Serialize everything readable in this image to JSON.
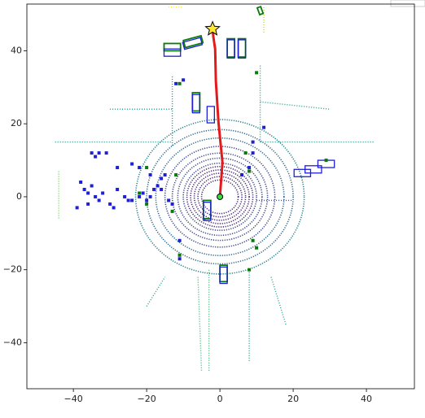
{
  "chart_data": {
    "type": "bev",
    "xlim": [
      -52.7,
      53.1
    ],
    "ylim": [
      -52.6,
      52.8
    ],
    "xticks": [
      {
        "value": -40,
        "label": "−40"
      },
      {
        "value": -20,
        "label": "−20"
      },
      0,
      20,
      40
    ],
    "yticks": [
      {
        "value": -40,
        "label": "−40"
      },
      {
        "value": -20,
        "label": "−20"
      },
      0,
      20,
      40
    ],
    "colormap": [
      "#440154",
      "#482878",
      "#3e4989",
      "#31688e",
      "#26828e",
      "#1f9e89",
      "#35b779",
      "#6ece58",
      "#b5de2b",
      "#fde725"
    ],
    "color_max": 55,
    "lidar_rings": [
      5,
      6,
      7,
      8,
      9,
      10,
      11.5,
      13,
      15,
      17.5,
      20,
      23
    ],
    "lidar_lines": [
      [
        -13,
        14,
        -13,
        33
      ],
      [
        11,
        15,
        11,
        36
      ],
      [
        -45,
        15,
        -13,
        15
      ],
      [
        11,
        15,
        42,
        15
      ],
      [
        -44,
        7,
        -44,
        -6
      ],
      [
        -3,
        -20,
        -3,
        -48
      ],
      [
        8,
        -20,
        8,
        -45
      ],
      [
        -6,
        -22,
        -5,
        -48
      ],
      [
        12,
        45,
        12,
        52
      ],
      [
        -14,
        52,
        -10,
        52
      ],
      [
        10,
        -1,
        20,
        -1
      ],
      [
        -30,
        24,
        -13,
        24
      ],
      [
        11,
        26,
        30,
        24
      ],
      [
        -20,
        -30,
        -15,
        -22
      ],
      [
        14,
        -22,
        18,
        -35
      ]
    ],
    "pred_boxes": [
      [
        -13,
        39.5,
        4.5,
        2,
        0
      ],
      [
        -7.5,
        42,
        5,
        2,
        15
      ],
      [
        3,
        40.5,
        2,
        5,
        0
      ],
      [
        6,
        40.5,
        2,
        5,
        0
      ],
      [
        -6.5,
        25.5,
        2,
        5,
        0
      ],
      [
        -2.5,
        22.5,
        2,
        4.5,
        0
      ],
      [
        -3.5,
        -4,
        2,
        5,
        0
      ],
      [
        1,
        -21.5,
        2,
        4.5,
        0
      ],
      [
        22.5,
        6.5,
        4.5,
        2,
        0
      ],
      [
        25.5,
        7.5,
        4.5,
        2,
        0
      ],
      [
        29,
        9,
        4.5,
        2,
        0
      ]
    ],
    "gt_boxes": [
      [
        -13,
        41,
        4.5,
        2,
        0
      ],
      [
        -7.3,
        42.5,
        5,
        2,
        15
      ],
      [
        3,
        40.8,
        2,
        5,
        0
      ],
      [
        6,
        40.8,
        2,
        5,
        0
      ],
      [
        -6.5,
        26,
        2,
        5,
        0
      ],
      [
        -3.5,
        -3.5,
        2,
        5,
        0
      ],
      [
        1,
        -21,
        2,
        4.5,
        0
      ],
      [
        11,
        51,
        1,
        2,
        20
      ]
    ],
    "pred_objects": [
      [
        -38,
        4
      ],
      [
        -37,
        2
      ],
      [
        -36,
        1
      ],
      [
        -35,
        3
      ],
      [
        -34,
        0
      ],
      [
        -33,
        -1
      ],
      [
        -32,
        1
      ],
      [
        -30,
        -2
      ],
      [
        -29,
        -3
      ],
      [
        -28,
        2
      ],
      [
        -26,
        0
      ],
      [
        -25,
        -1
      ],
      [
        -24,
        -1
      ],
      [
        -22,
        0
      ],
      [
        -21,
        1
      ],
      [
        -20,
        -1
      ],
      [
        -19,
        0
      ],
      [
        -18,
        2
      ],
      [
        -17,
        3
      ],
      [
        -16,
        5
      ],
      [
        -15,
        6
      ],
      [
        -22,
        8
      ],
      [
        -24,
        9
      ],
      [
        -19,
        6
      ],
      [
        -28,
        8
      ],
      [
        -34,
        11
      ],
      [
        -33,
        12
      ],
      [
        -31,
        12
      ],
      [
        -35,
        12
      ],
      [
        -39,
        -3
      ],
      [
        -36,
        -2
      ],
      [
        -11,
        -12
      ],
      [
        -11,
        -17
      ],
      [
        -12,
        31
      ],
      [
        -10,
        32
      ],
      [
        12,
        19
      ],
      [
        9,
        15
      ],
      [
        9,
        12
      ],
      [
        8,
        8
      ],
      [
        6,
        6
      ],
      [
        -16,
        2
      ],
      [
        -14,
        -1
      ],
      [
        -13,
        -2
      ]
    ],
    "gt_objects": [
      [
        -20,
        8
      ],
      [
        -22,
        1
      ],
      [
        -20,
        -2
      ],
      [
        -11,
        31
      ],
      [
        -11,
        -16
      ],
      [
        7,
        12
      ],
      [
        8,
        7
      ],
      [
        9,
        -12
      ],
      [
        10,
        -14
      ],
      [
        8,
        -20
      ],
      [
        10,
        34
      ],
      [
        29,
        10
      ],
      [
        -12,
        6
      ],
      [
        -13,
        -4
      ]
    ],
    "trajectory": {
      "x": [
        0,
        0.7,
        -0.4,
        -1.1,
        -1.3,
        -1.8,
        -2
      ],
      "y": [
        0,
        9.4,
        20.5,
        31.6,
        40.5,
        43.9,
        46
      ],
      "color": "#e31a1c"
    },
    "goal": [
      -2,
      46
    ],
    "ego": [
      0,
      0
    ],
    "pred_color": "#1f1fd6",
    "gt_color": "#0a7a0a"
  }
}
